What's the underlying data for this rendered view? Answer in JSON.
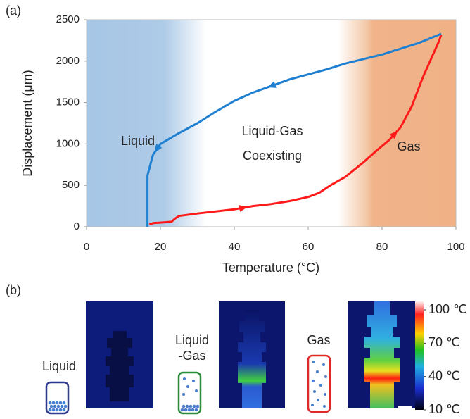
{
  "chart_data": {
    "type": "line",
    "panel_label": "(a)",
    "x_label": "Temperature (°C)",
    "y_label": "Displacement (μm)",
    "xlim": [
      0,
      100
    ],
    "xticks": [
      0,
      20,
      40,
      60,
      80,
      100
    ],
    "ylim": [
      0,
      2500
    ],
    "yticks": [
      0,
      500,
      1000,
      1500,
      2000,
      2500
    ],
    "annotations": [
      "Liquid",
      "Liquid-Gas",
      "Coexisting",
      "Gas"
    ],
    "series": [
      {
        "color": "#ff1a1a",
        "x": [
          17,
          17.5,
          18,
          20,
          23,
          24,
          25,
          30,
          40,
          45,
          50,
          55,
          60,
          63,
          66,
          70,
          75,
          78,
          82,
          85,
          88,
          91,
          94,
          95.5,
          96
        ],
        "values": [
          40,
          30,
          45,
          50,
          60,
          100,
          130,
          160,
          210,
          250,
          275,
          310,
          360,
          410,
          500,
          600,
          780,
          900,
          1050,
          1200,
          1450,
          1800,
          2100,
          2250,
          2320
        ]
      },
      {
        "color": "#1f7fd0",
        "x": [
          96,
          90,
          80,
          70,
          65,
          55,
          45,
          40,
          35,
          30,
          25,
          20,
          18,
          16.5,
          16.5,
          16.5
        ],
        "values": [
          2330,
          2220,
          2080,
          1970,
          1900,
          1780,
          1620,
          1520,
          1390,
          1250,
          1130,
          1000,
          870,
          620,
          300,
          0
        ]
      }
    ]
  },
  "panel_b": {
    "panel_label": "(b)",
    "labels": [
      [
        "Liquid"
      ],
      [
        "Liquid",
        "-Gas"
      ],
      [
        "Gas"
      ]
    ],
    "colorbar": {
      "lim": [
        10,
        100
      ],
      "ticks": [
        {
          "value": 100,
          "label": "100 ℃"
        },
        {
          "value": 70,
          "label": "70 ℃"
        },
        {
          "value": 40,
          "label": "40 ℃"
        },
        {
          "value": 10,
          "label": "10 ℃"
        }
      ]
    }
  }
}
